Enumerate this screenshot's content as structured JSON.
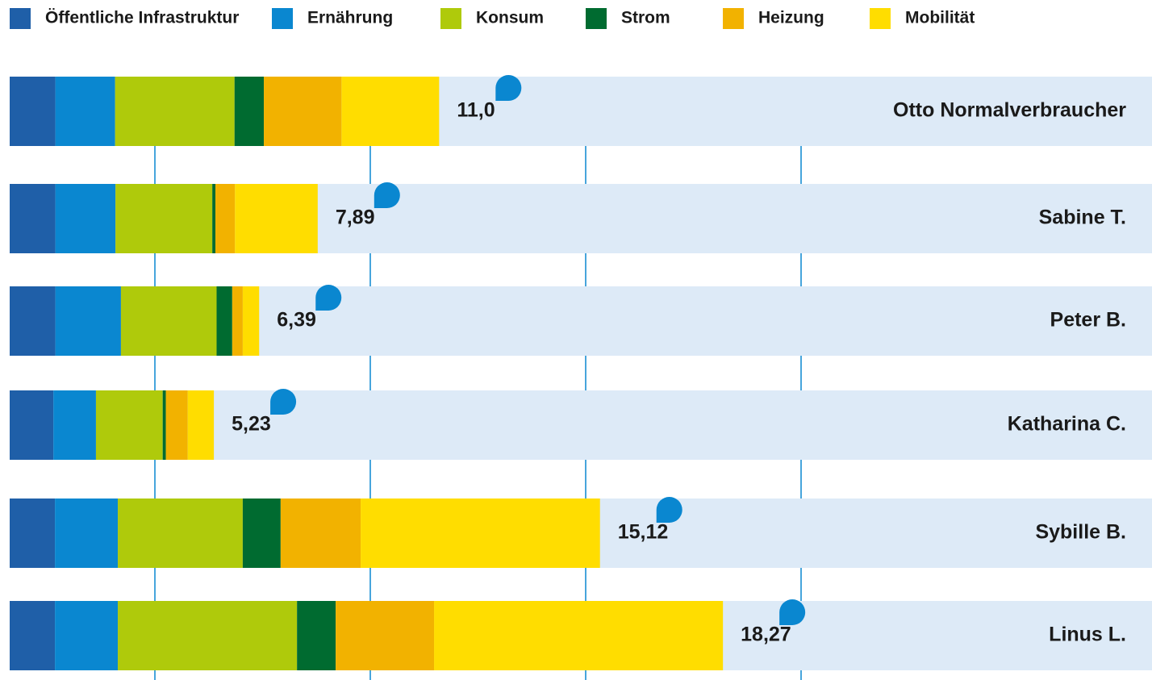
{
  "chart_data": {
    "type": "stacked-bar",
    "categories": [
      "Otto Normalverbraucher",
      "Sabine T.",
      "Peter B.",
      "Katharina C.",
      "Sybille B.",
      "Linus L."
    ],
    "series": [
      {
        "name": "Öffentliche Infrastruktur",
        "color": "#1f5fa8",
        "values": [
          1.17,
          1.17,
          1.17,
          1.12,
          1.16,
          1.16
        ]
      },
      {
        "name": "Ernährung",
        "color": "#0a87d0",
        "values": [
          1.53,
          1.54,
          1.68,
          1.09,
          1.61,
          1.61
        ]
      },
      {
        "name": "Konsum",
        "color": "#afca0b",
        "values": [
          3.06,
          2.48,
          2.45,
          1.71,
          3.2,
          4.59
        ]
      },
      {
        "name": "Strom",
        "color": "#006b30",
        "values": [
          0.75,
          0.08,
          0.4,
          0.08,
          0.97,
          0.99
        ]
      },
      {
        "name": "Heizung",
        "color": "#f2b200",
        "values": [
          1.99,
          0.5,
          0.27,
          0.56,
          2.05,
          2.52
        ]
      },
      {
        "name": "Mobilität",
        "color": "#ffdd00",
        "values": [
          2.5,
          2.12,
          0.42,
          0.67,
          6.13,
          7.4
        ]
      }
    ],
    "totals": [
      11.0,
      7.89,
      6.39,
      5.23,
      15.12,
      18.27
    ],
    "total_labels": [
      "11,0",
      "7,89",
      "6,39",
      "5,23",
      "15,12",
      "18,27"
    ],
    "xlim": [
      0,
      29.26
    ],
    "background_color": "#ddeaf7"
  }
}
